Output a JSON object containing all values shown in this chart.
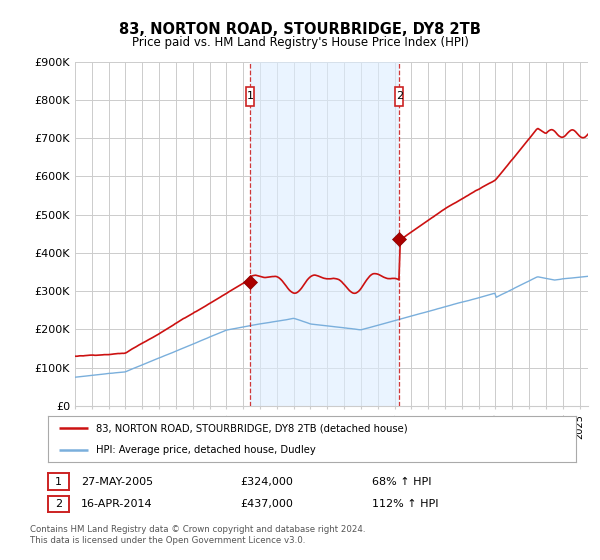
{
  "title": "83, NORTON ROAD, STOURBRIDGE, DY8 2TB",
  "subtitle": "Price paid vs. HM Land Registry's House Price Index (HPI)",
  "ylabel_ticks": [
    "£0",
    "£100K",
    "£200K",
    "£300K",
    "£400K",
    "£500K",
    "£600K",
    "£700K",
    "£800K",
    "£900K"
  ],
  "ylim": [
    0,
    900000
  ],
  "xlim_start": 1995,
  "xlim_end": 2025.5,
  "sale1_date": 2005.4,
  "sale1_price": 324000,
  "sale1_label": "1",
  "sale2_date": 2014.28,
  "sale2_price": 437000,
  "sale2_label": "2",
  "hpi_line_color": "#7aafdc",
  "price_line_color": "#cc1111",
  "vline_color": "#cc2222",
  "shade_color": "#ddeeff",
  "legend_line1": "83, NORTON ROAD, STOURBRIDGE, DY8 2TB (detached house)",
  "legend_line2": "HPI: Average price, detached house, Dudley",
  "table_row1": [
    "1",
    "27-MAY-2005",
    "£324,000",
    "68% ↑ HPI"
  ],
  "table_row2": [
    "2",
    "16-APR-2014",
    "£437,000",
    "112% ↑ HPI"
  ],
  "footnote": "Contains HM Land Registry data © Crown copyright and database right 2024.\nThis data is licensed under the Open Government Licence v3.0.",
  "background_color": "#ffffff",
  "grid_color": "#cccccc"
}
